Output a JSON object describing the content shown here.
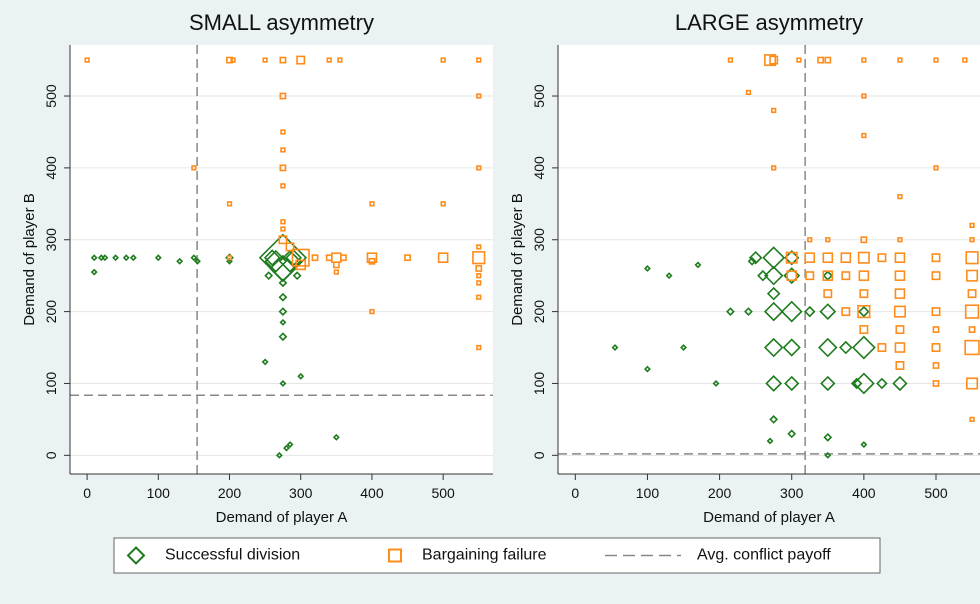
{
  "chart_data": [
    {
      "type": "scatter",
      "title": "SMALL asymmetry",
      "xlabel": "Demand of player A",
      "ylabel": "Demand of player B",
      "xlim": [
        -24,
        570
      ],
      "ylim": [
        -26,
        571
      ],
      "xticks": [
        0,
        100,
        200,
        300,
        400,
        500
      ],
      "yticks": [
        0,
        100,
        200,
        300,
        400,
        500
      ],
      "grid": true,
      "ref_lines": {
        "x": 154.5,
        "y": 83.6
      },
      "series": [
        {
          "marker": "diamond",
          "color": "#1e7b1e",
          "x": [
            10,
            10,
            20,
            25,
            40,
            55,
            65,
            100,
            130,
            150,
            155,
            200,
            200,
            275,
            275,
            265,
            285,
            260,
            290,
            275,
            275,
            275,
            275,
            275,
            250,
            300,
            275,
            350,
            285,
            280,
            270,
            255,
            295
          ],
          "values": [
            275,
            255,
            275,
            275,
            275,
            275,
            275,
            275,
            270,
            275,
            270,
            275,
            270,
            275,
            260,
            270,
            270,
            275,
            275,
            240,
            220,
            200,
            185,
            165,
            130,
            110,
            100,
            25,
            15,
            10,
            0,
            250,
            250
          ],
          "sizes": [
            1,
            1,
            1,
            1,
            1,
            1,
            1,
            1,
            1,
            1,
            1,
            2,
            1,
            100,
            30,
            20,
            20,
            10,
            10,
            2,
            2,
            2,
            1,
            2,
            1,
            1,
            1,
            1,
            1,
            1,
            1,
            2,
            2
          ]
        },
        {
          "marker": "square",
          "color": "#ff8c1a",
          "x": [
            0,
            200,
            205,
            250,
            275,
            300,
            340,
            355,
            500,
            550,
            275,
            550,
            275,
            275,
            275,
            550,
            150,
            200,
            400,
            500,
            275,
            275,
            275,
            275,
            285,
            300,
            300,
            320,
            340,
            350,
            360,
            400,
            450,
            500,
            550,
            350,
            350,
            400,
            400,
            550,
            550,
            550,
            550,
            550,
            550,
            200
          ],
          "values": [
            550,
            550,
            550,
            550,
            550,
            550,
            550,
            550,
            550,
            550,
            500,
            500,
            450,
            425,
            400,
            400,
            400,
            350,
            350,
            350,
            375,
            325,
            315,
            300,
            290,
            275,
            265,
            275,
            275,
            275,
            275,
            275,
            275,
            275,
            275,
            265,
            255,
            270,
            200,
            150,
            220,
            240,
            250,
            260,
            290,
            275
          ],
          "sizes": [
            1,
            2,
            1,
            1,
            2,
            4,
            1,
            1,
            1,
            1,
            2,
            1,
            1,
            1,
            2,
            1,
            1,
            1,
            1,
            1,
            1,
            1,
            1,
            4,
            4,
            20,
            6,
            2,
            2,
            6,
            2,
            6,
            2,
            6,
            10,
            2,
            1,
            2,
            1,
            1,
            1,
            1,
            1,
            2,
            1,
            1
          ]
        }
      ]
    },
    {
      "type": "scatter",
      "title": "LARGE asymmetry",
      "xlabel": "Demand of player A",
      "ylabel": "Demand of player B",
      "xlim": [
        -24,
        561
      ],
      "ylim": [
        -26,
        571
      ],
      "xticks": [
        0,
        100,
        200,
        300,
        400,
        500
      ],
      "yticks": [
        0,
        100,
        200,
        300,
        400,
        500
      ],
      "grid": true,
      "ref_lines": {
        "x": 318.6,
        "y": 2
      },
      "series": [
        {
          "marker": "diamond",
          "color": "#1e7b1e",
          "x": [
            55,
            100,
            100,
            130,
            150,
            170,
            195,
            215,
            240,
            245,
            250,
            260,
            275,
            275,
            275,
            275,
            275,
            275,
            300,
            300,
            300,
            300,
            300,
            325,
            350,
            350,
            350,
            350,
            350,
            375,
            390,
            400,
            400,
            400,
            400,
            425,
            450,
            275,
            300,
            350,
            270
          ],
          "values": [
            150,
            260,
            120,
            250,
            150,
            265,
            100,
            200,
            200,
            270,
            275,
            250,
            275,
            250,
            225,
            200,
            150,
            100,
            275,
            250,
            200,
            150,
            100,
            200,
            200,
            150,
            100,
            250,
            25,
            150,
            100,
            150,
            100,
            200,
            15,
            100,
            100,
            50,
            30,
            0,
            20
          ],
          "sizes": [
            1,
            1,
            1,
            1,
            1,
            1,
            1,
            2,
            2,
            2,
            6,
            4,
            20,
            14,
            6,
            14,
            14,
            10,
            8,
            10,
            18,
            12,
            8,
            4,
            10,
            14,
            8,
            3,
            2,
            6,
            4,
            22,
            18,
            4,
            1,
            4,
            8,
            2,
            2,
            1,
            1
          ]
        },
        {
          "marker": "square",
          "color": "#ff8c1a",
          "x": [
            215,
            240,
            270,
            275,
            310,
            340,
            350,
            400,
            450,
            500,
            540,
            275,
            400,
            400,
            450,
            500,
            275,
            300,
            325,
            350,
            375,
            400,
            425,
            450,
            500,
            550,
            300,
            325,
            350,
            375,
            400,
            450,
            500,
            550,
            350,
            400,
            450,
            550,
            375,
            400,
            450,
            500,
            550,
            400,
            450,
            500,
            550,
            425,
            450,
            500,
            550,
            450,
            500,
            500,
            550,
            325,
            350,
            400,
            450,
            550,
            550,
            550
          ],
          "values": [
            550,
            505,
            550,
            550,
            550,
            550,
            550,
            550,
            550,
            550,
            550,
            480,
            500,
            445,
            360,
            400,
            400,
            275,
            275,
            275,
            275,
            275,
            275,
            275,
            275,
            275,
            250,
            250,
            250,
            250,
            250,
            250,
            250,
            250,
            225,
            225,
            225,
            225,
            200,
            200,
            200,
            200,
            200,
            175,
            175,
            175,
            175,
            150,
            150,
            150,
            150,
            125,
            125,
            100,
            100,
            300,
            300,
            300,
            300,
            320,
            50,
            300
          ],
          "sizes": [
            1,
            1,
            8,
            4,
            1,
            2,
            2,
            1,
            1,
            1,
            1,
            1,
            1,
            1,
            1,
            1,
            1,
            8,
            6,
            6,
            6,
            8,
            4,
            6,
            4,
            10,
            6,
            4,
            6,
            4,
            6,
            6,
            4,
            8,
            4,
            4,
            6,
            4,
            4,
            10,
            8,
            4,
            12,
            4,
            4,
            2,
            2,
            4,
            6,
            4,
            14,
            4,
            2,
            2,
            8,
            1,
            1,
            2,
            1,
            1,
            1,
            1
          ]
        }
      ]
    }
  ],
  "legend": {
    "position": "bottom",
    "items": [
      {
        "name": "Successful division",
        "marker": "diamond",
        "color": "#1e7b1e"
      },
      {
        "name": "Bargaining failure",
        "marker": "square",
        "color": "#ff8c1a"
      },
      {
        "name": "Avg. conflict payoff",
        "marker": "dash",
        "color": "#888888"
      }
    ]
  }
}
